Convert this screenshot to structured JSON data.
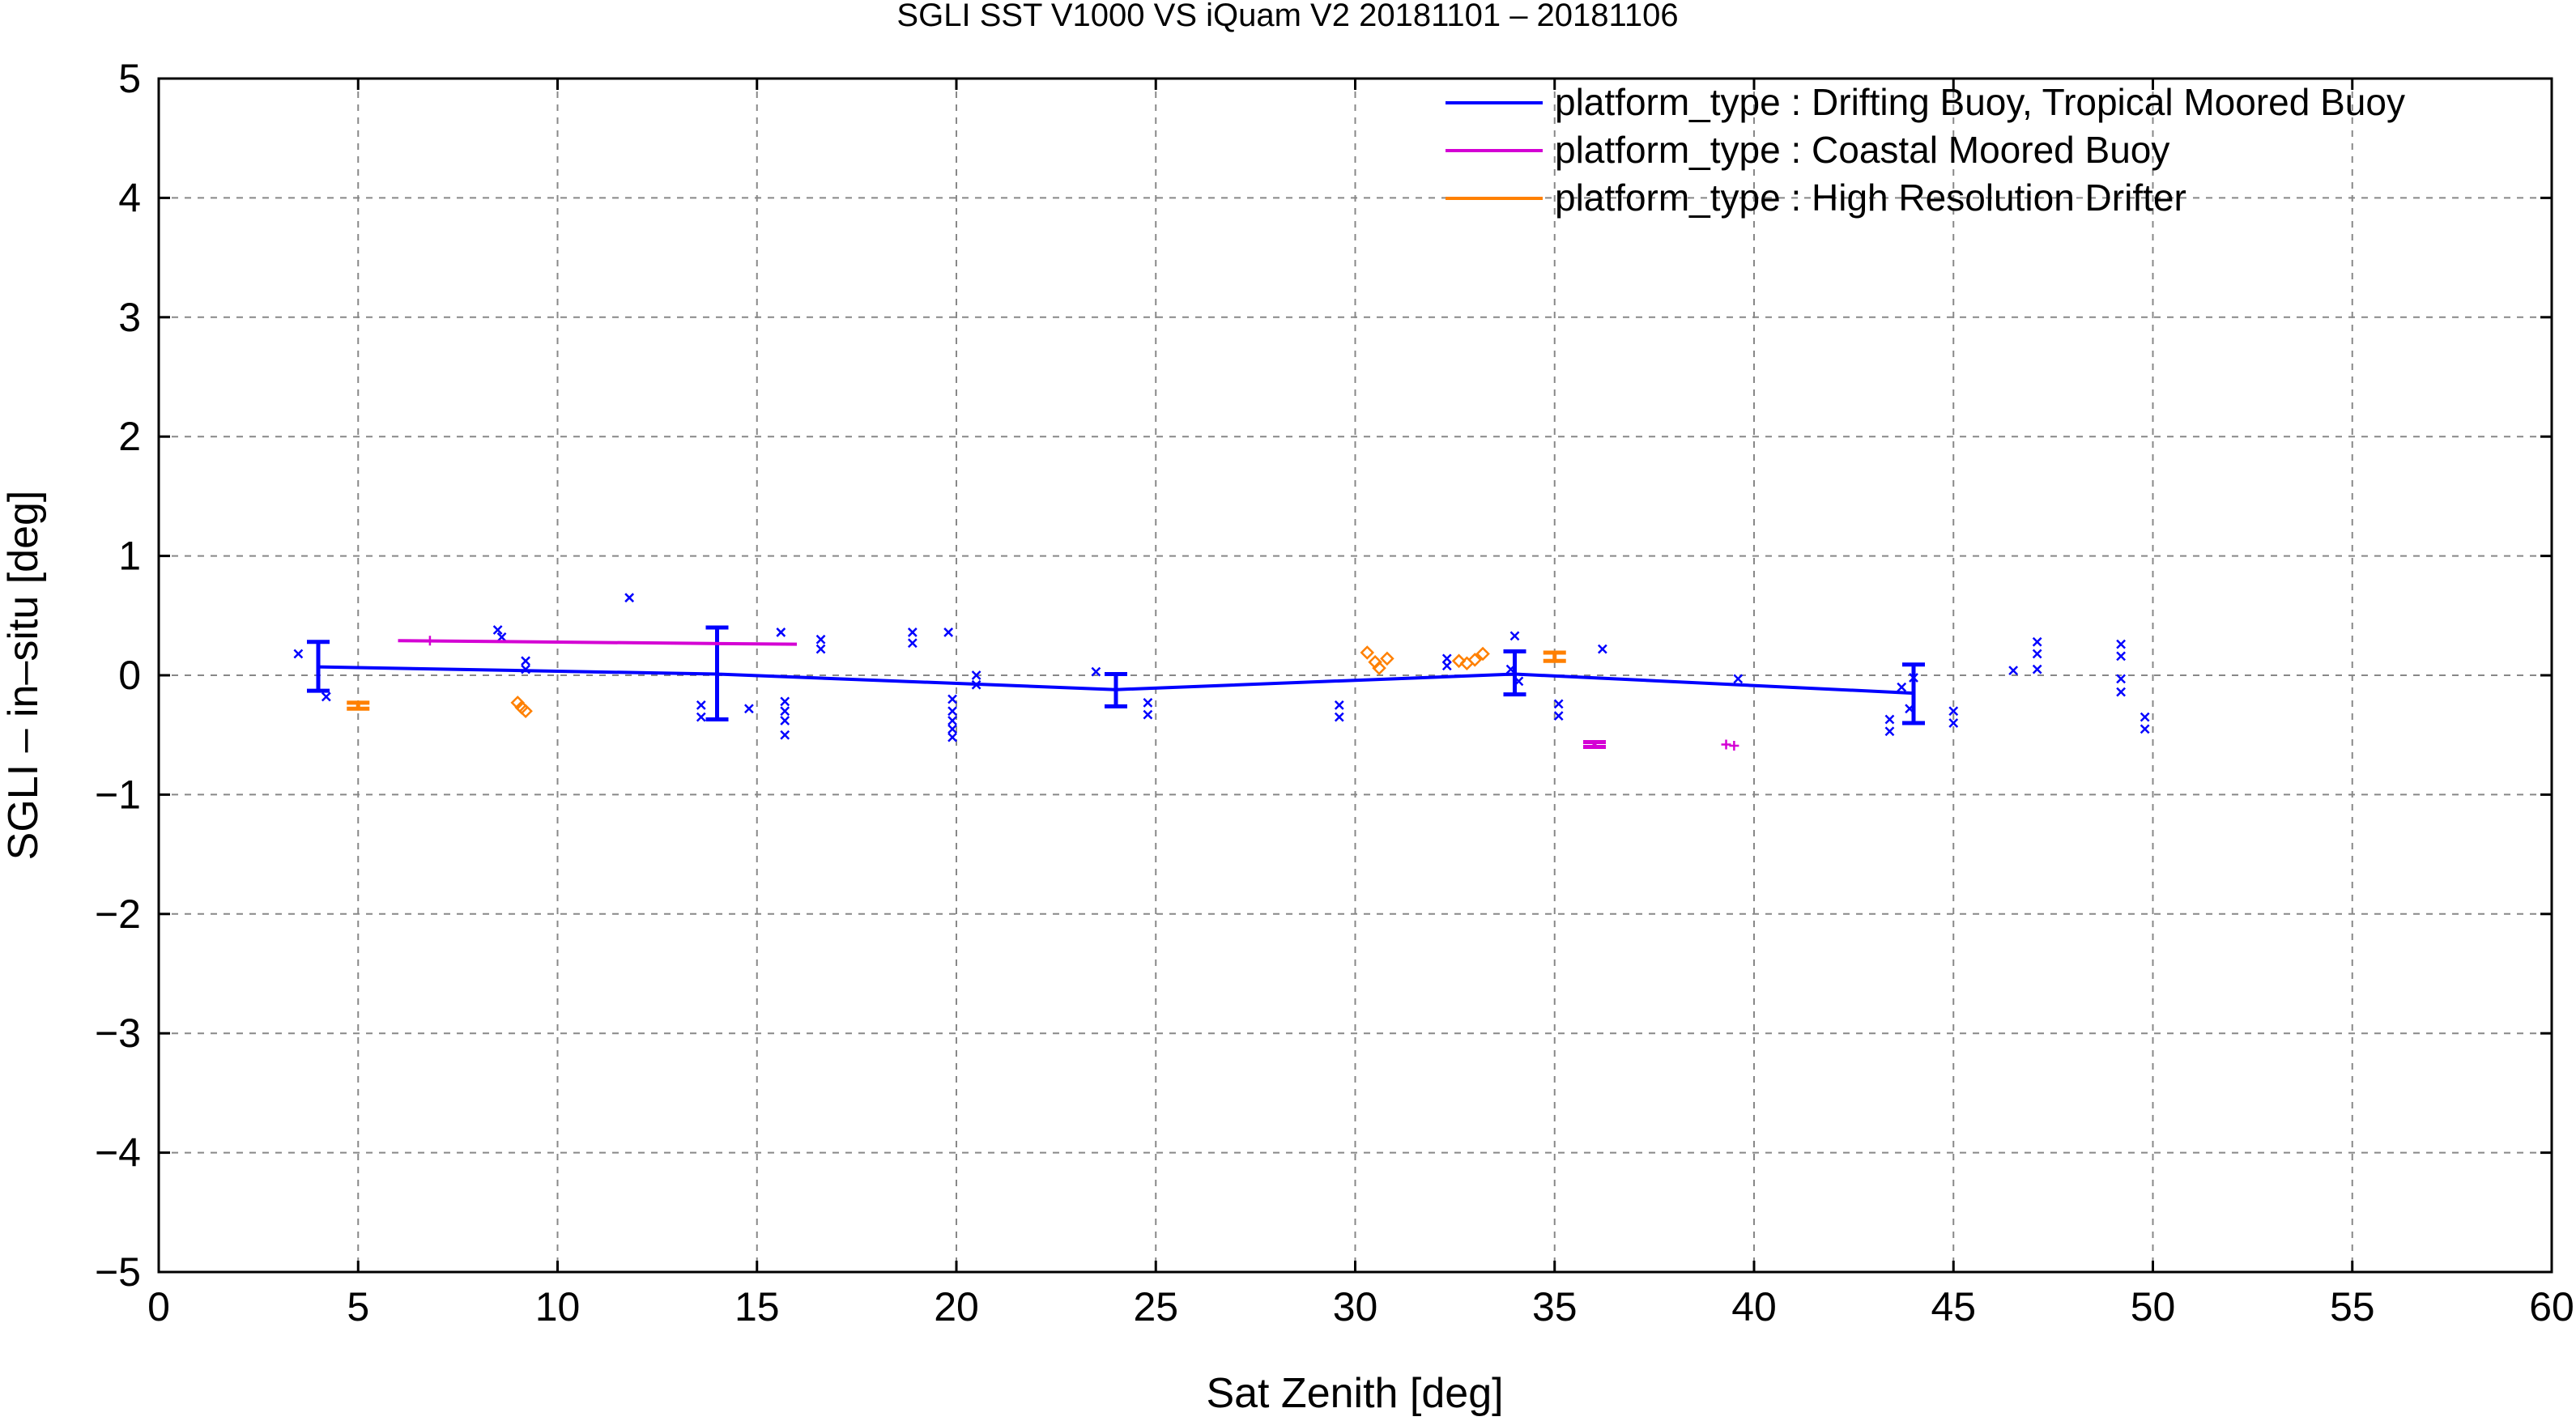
{
  "chart_data": {
    "type": "scatter",
    "title": "SGLI SST V1000 VS iQuam V2 20181101 – 20181106",
    "xlabel": "Sat Zenith [deg]",
    "ylabel": "SGLI – in–situ [deg]",
    "xlim": [
      0,
      60
    ],
    "ylim": [
      -5,
      5
    ],
    "xticks": [
      0,
      5,
      10,
      15,
      20,
      25,
      30,
      35,
      40,
      45,
      50,
      55,
      60
    ],
    "yticks": [
      -5,
      -4,
      -3,
      -2,
      -1,
      0,
      1,
      2,
      3,
      4,
      5
    ],
    "xtick_labels": [
      "0",
      "5",
      "10",
      "15",
      "20",
      "25",
      "30",
      "35",
      "40",
      "45",
      "50",
      "55",
      "60"
    ],
    "ytick_labels": [
      "−5",
      "−4",
      "−3",
      "−2",
      "−1",
      "0",
      "1",
      "2",
      "3",
      "4",
      "5"
    ],
    "grid": true,
    "legend_position": "top-right",
    "series": [
      {
        "name": "platform_type : Drifting Buoy, Tropical Moored Buoy",
        "color": "#0000ff",
        "marker": "x",
        "mean_line": {
          "x": [
            4,
            14,
            24,
            34,
            44
          ],
          "y": [
            0.07,
            0.01,
            -0.12,
            0.01,
            -0.15
          ]
        },
        "error_bars": [
          {
            "x": 4,
            "low": -0.13,
            "high": 0.28
          },
          {
            "x": 14,
            "low": -0.37,
            "high": 0.4
          },
          {
            "x": 24,
            "low": -0.26,
            "high": 0.01
          },
          {
            "x": 34,
            "low": -0.16,
            "high": 0.2
          },
          {
            "x": 44,
            "low": -0.4,
            "high": 0.09
          }
        ],
        "points": [
          [
            3.5,
            0.18
          ],
          [
            4.2,
            -0.18
          ],
          [
            8.5,
            0.38
          ],
          [
            8.6,
            0.32
          ],
          [
            9.2,
            0.12
          ],
          [
            9.2,
            0.05
          ],
          [
            11.8,
            0.65
          ],
          [
            13.6,
            -0.25
          ],
          [
            13.6,
            -0.35
          ],
          [
            14.8,
            -0.28
          ],
          [
            15.6,
            0.36
          ],
          [
            15.7,
            -0.22
          ],
          [
            15.7,
            -0.3
          ],
          [
            15.7,
            -0.38
          ],
          [
            15.7,
            -0.5
          ],
          [
            16.6,
            0.3
          ],
          [
            16.6,
            0.22
          ],
          [
            18.9,
            0.36
          ],
          [
            18.9,
            0.27
          ],
          [
            19.8,
            0.36
          ],
          [
            19.9,
            -0.2
          ],
          [
            19.9,
            -0.3
          ],
          [
            19.9,
            -0.38
          ],
          [
            19.9,
            -0.45
          ],
          [
            19.9,
            -0.52
          ],
          [
            20.5,
            0.0
          ],
          [
            20.5,
            -0.08
          ],
          [
            23.5,
            0.03
          ],
          [
            24.8,
            -0.23
          ],
          [
            24.8,
            -0.33
          ],
          [
            29.6,
            -0.25
          ],
          [
            29.6,
            -0.35
          ],
          [
            32.3,
            0.14
          ],
          [
            32.3,
            0.08
          ],
          [
            33.9,
            0.05
          ],
          [
            34.0,
            0.33
          ],
          [
            34.1,
            -0.05
          ],
          [
            35.1,
            -0.24
          ],
          [
            35.1,
            -0.34
          ],
          [
            36.2,
            0.22
          ],
          [
            39.6,
            -0.03
          ],
          [
            43.4,
            -0.37
          ],
          [
            43.4,
            -0.47
          ],
          [
            43.7,
            -0.1
          ],
          [
            43.9,
            -0.28
          ],
          [
            44.0,
            -0.02
          ],
          [
            45.0,
            -0.3
          ],
          [
            45.0,
            -0.4
          ],
          [
            46.5,
            0.04
          ],
          [
            47.1,
            0.28
          ],
          [
            47.1,
            0.18
          ],
          [
            47.1,
            0.05
          ],
          [
            49.2,
            0.26
          ],
          [
            49.2,
            0.16
          ],
          [
            49.2,
            -0.03
          ],
          [
            49.2,
            -0.14
          ],
          [
            49.8,
            -0.35
          ],
          [
            49.8,
            -0.45
          ]
        ]
      },
      {
        "name": "platform_type : Coastal Moored Buoy",
        "color": "#d400d4",
        "marker": "+",
        "mean_line": {
          "x": [
            6,
            16
          ],
          "y": [
            0.29,
            0.26
          ]
        },
        "points": [
          [
            6.8,
            0.29
          ],
          [
            39.3,
            -0.58
          ],
          [
            39.5,
            -0.59
          ]
        ],
        "error_bars": [
          {
            "x": 36,
            "low": -0.6,
            "high": -0.56
          }
        ]
      },
      {
        "name": "platform_type : High Resolution Drifter",
        "color": "#ff8000",
        "marker": "diamond",
        "points": [
          [
            9.0,
            -0.23
          ],
          [
            9.1,
            -0.27
          ],
          [
            9.2,
            -0.3
          ],
          [
            30.3,
            0.19
          ],
          [
            30.5,
            0.11
          ],
          [
            30.6,
            0.06
          ],
          [
            30.8,
            0.14
          ],
          [
            32.6,
            0.12
          ],
          [
            32.8,
            0.1
          ],
          [
            33.0,
            0.13
          ],
          [
            33.2,
            0.18
          ]
        ],
        "error_bars": [
          {
            "x": 5,
            "low": -0.28,
            "high": -0.23
          },
          {
            "x": 35,
            "low": 0.12,
            "high": 0.19
          }
        ]
      }
    ]
  }
}
